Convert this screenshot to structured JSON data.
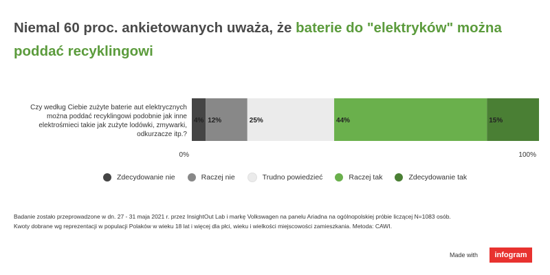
{
  "header": {
    "title_part1": "Niemal 60 proc. ankietowanych uważa, że ",
    "title_highlight": "baterie do \"elektryków\" można poddać recyklingowi",
    "highlight_color": "#5b9b3c"
  },
  "question": "Czy według Ciebie zużyte baterie aut elektrycznych można poddać recyklingowi podobnie jak inne elektrośmieci takie jak zużyte lodówki, zmywarki, odkurzacze itp.?",
  "chart_data": {
    "type": "bar",
    "orientation": "horizontal-stacked-100",
    "title": "Niemal 60 proc. ankietowanych uważa, że baterie do \"elektryków\" można poddać recyklingowi",
    "categories": [
      "Czy według Ciebie zużyte baterie aut elektrycznych można poddać recyklingowi podobnie jak inne elektrośmieci takie jak zużyte lodówki, zmywarki, odkurzacze itp.?"
    ],
    "series": [
      {
        "name": "Zdecydowanie nie",
        "values": [
          4
        ],
        "label": "4%",
        "color": "#454545"
      },
      {
        "name": "Raczej nie",
        "values": [
          12
        ],
        "label": "12%",
        "color": "#888888"
      },
      {
        "name": "Trudno powiedzieć",
        "values": [
          25
        ],
        "label": "25%",
        "color": "#ebebeb"
      },
      {
        "name": "Raczej tak",
        "values": [
          44
        ],
        "label": "44%",
        "color": "#6ab04c"
      },
      {
        "name": "Zdecydowanie tak",
        "values": [
          15
        ],
        "label": "15%",
        "color": "#4a7f34"
      }
    ],
    "xlim": [
      0,
      100
    ],
    "tick_labels": [
      "0%",
      "100%"
    ],
    "legend_position": "bottom"
  },
  "footnote": {
    "line1": "Badanie zostało przeprowadzone w dn. 27 - 31 maja 2021 r. przez InsightOut Lab i markę Volkswagen na panelu Ariadna na ogólnopolskiej próbie liczącej N=1083 osób.",
    "line2": "Kwoty dobrane wg reprezentacji w populacji Polaków w wieku 18 lat i więcej dla płci, wieku i wielkości miejscowości zamieszkania. Metoda: CAWI."
  },
  "branding": {
    "made_with": "Made with",
    "brand": "infogram",
    "brand_color": "#e8322f"
  }
}
